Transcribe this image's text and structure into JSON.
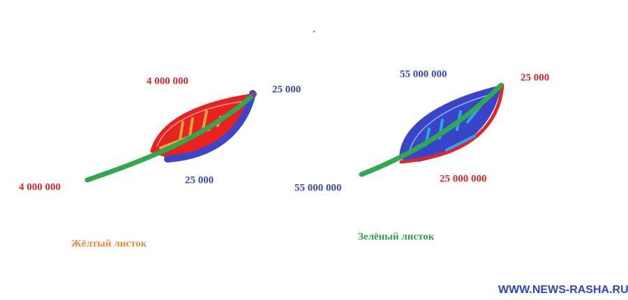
{
  "leaves": [
    {
      "title": "Жёлтый листок",
      "top_label": "4 000 000",
      "tip_label": "25 000",
      "bottom_label": "25 000",
      "stem_label": "4 000 000"
    },
    {
      "title": "Зелёный листок",
      "top_label": "55 000 000",
      "tip_label": "25 000",
      "bottom_label": "25 000 000",
      "stem_label": "55 000 000"
    }
  ],
  "watermark": "WWW.NEWS-RASHA.RU"
}
